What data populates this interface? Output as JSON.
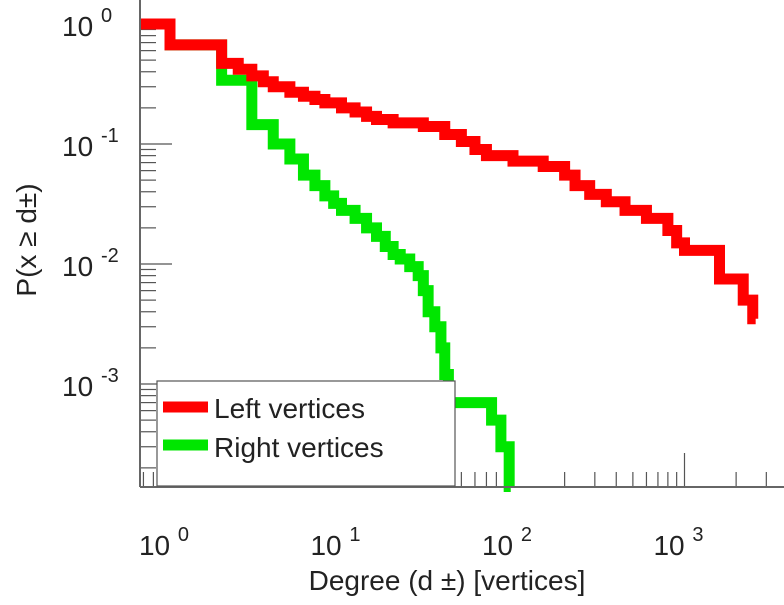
{
  "chart_data": {
    "type": "line",
    "step": true,
    "xscale": "log",
    "yscale": "log",
    "xlabel": "Degree (d ±) [vertices]",
    "ylabel": "P(x ≥ d±)",
    "xlim": [
      0.67,
      3700
    ],
    "ylim": [
      0.00014,
      1.15
    ],
    "xticks": [
      {
        "base": "10",
        "exp": "0",
        "value": 1
      },
      {
        "base": "10",
        "exp": "1",
        "value": 10
      },
      {
        "base": "10",
        "exp": "2",
        "value": 100
      },
      {
        "base": "10",
        "exp": "3",
        "value": 1000
      }
    ],
    "yticks": [
      {
        "base": "10",
        "exp": "0",
        "value": 1
      },
      {
        "base": "10",
        "exp": "-1",
        "value": 0.1
      },
      {
        "base": "10",
        "exp": "-2",
        "value": 0.01
      },
      {
        "base": "10",
        "exp": "-3",
        "value": 0.001
      }
    ],
    "legend_position": "bottom-left",
    "series": [
      {
        "name": "Left vertices",
        "color": "#ff0000",
        "x_end": 2600,
        "points": [
          [
            0.67,
            1
          ],
          [
            1,
            0.67
          ],
          [
            2,
            0.47
          ],
          [
            2.5,
            0.42
          ],
          [
            3,
            0.37
          ],
          [
            3.5,
            0.33
          ],
          [
            4,
            0.3
          ],
          [
            5,
            0.27
          ],
          [
            6,
            0.25
          ],
          [
            7,
            0.235
          ],
          [
            8,
            0.22
          ],
          [
            10,
            0.2
          ],
          [
            12,
            0.185
          ],
          [
            14,
            0.17
          ],
          [
            16,
            0.16
          ],
          [
            20,
            0.15
          ],
          [
            30,
            0.14
          ],
          [
            40,
            0.12
          ],
          [
            50,
            0.105
          ],
          [
            60,
            0.09
          ],
          [
            70,
            0.08
          ],
          [
            100,
            0.072
          ],
          [
            150,
            0.065
          ],
          [
            200,
            0.055
          ],
          [
            230,
            0.045
          ],
          [
            280,
            0.038
          ],
          [
            350,
            0.033
          ],
          [
            450,
            0.028
          ],
          [
            600,
            0.024
          ],
          [
            800,
            0.019
          ],
          [
            900,
            0.015
          ],
          [
            1000,
            0.013
          ],
          [
            1600,
            0.0075
          ],
          [
            2200,
            0.005
          ],
          [
            2500,
            0.0035
          ]
        ]
      },
      {
        "name": "Right vertices",
        "color": "#00e600",
        "x_end": 97,
        "points": [
          [
            0.67,
            1
          ],
          [
            1,
            0.67
          ],
          [
            2,
            0.34
          ],
          [
            3,
            0.145
          ],
          [
            4,
            0.1
          ],
          [
            5,
            0.075
          ],
          [
            6,
            0.055
          ],
          [
            7,
            0.045
          ],
          [
            8,
            0.037
          ],
          [
            9,
            0.032
          ],
          [
            10,
            0.028
          ],
          [
            12,
            0.024
          ],
          [
            14,
            0.02
          ],
          [
            16,
            0.017
          ],
          [
            18,
            0.014
          ],
          [
            20,
            0.012
          ],
          [
            22,
            0.011
          ],
          [
            25,
            0.0095
          ],
          [
            28,
            0.008
          ],
          [
            30,
            0.006
          ],
          [
            32,
            0.004
          ],
          [
            35,
            0.003
          ],
          [
            38,
            0.002
          ],
          [
            40,
            0.0012
          ],
          [
            42,
            0.0007
          ],
          [
            75,
            0.0005
          ],
          [
            85,
            0.0003
          ],
          [
            95,
            0.00014
          ]
        ]
      }
    ]
  }
}
